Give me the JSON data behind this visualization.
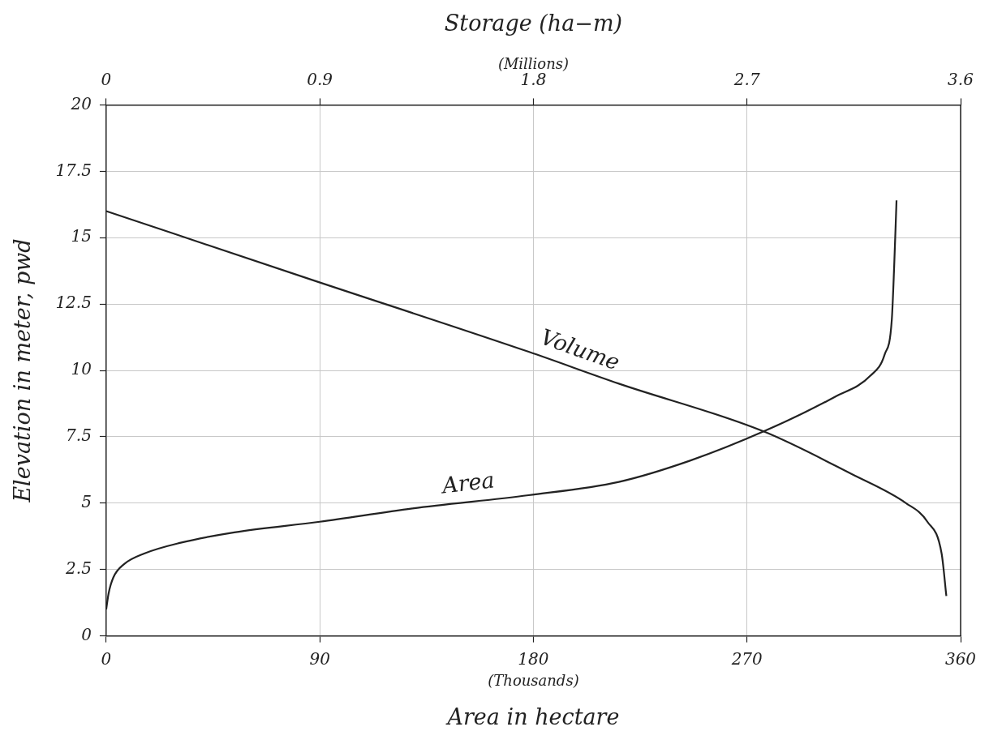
{
  "chart_data": {
    "type": "line",
    "xlabel": "Area in hectare",
    "x2label": "Storage (ha−m)",
    "ylabel": "Elevation in meter, pwd",
    "annotations": [
      "(Thousands)",
      "(Millions)"
    ],
    "xlim": [
      0,
      360
    ],
    "xticks": [
      0,
      90,
      180,
      270,
      360
    ],
    "x2lim": [
      0,
      3.6
    ],
    "x2ticks": [
      0,
      0.9,
      1.8,
      2.7,
      3.6
    ],
    "ylim": [
      0,
      20
    ],
    "yticks": [
      0,
      2.5,
      5,
      7.5,
      10,
      12.5,
      15,
      17.5,
      20
    ],
    "grid": true,
    "legend": false,
    "marker": "none",
    "line_style": "solid",
    "series": [
      {
        "name": "Area",
        "color": "#222222",
        "x": [
          0,
          1,
          3,
          7.5,
          16,
          31,
          54,
          90,
          129,
          178,
          216,
          246,
          277,
          307,
          322,
          328,
          331,
          332,
          333
        ],
        "values": [
          1.0,
          1.6,
          2.2,
          2.7,
          3.1,
          3.5,
          3.9,
          4.3,
          4.8,
          5.3,
          5.8,
          6.6,
          7.7,
          9.0,
          9.8,
          10.6,
          11.9,
          13.9,
          16.4
        ]
      },
      {
        "name": "Volume",
        "color": "#222222",
        "axis": "x2",
        "x": [
          0,
          0.87,
          1.78,
          2.16,
          2.77,
          3.14,
          3.37,
          3.46,
          3.52,
          3.54
        ],
        "values": [
          16.0,
          13.4,
          10.7,
          9.5,
          7.7,
          6.1,
          5.0,
          4.3,
          3.1,
          1.5
        ]
      }
    ]
  }
}
